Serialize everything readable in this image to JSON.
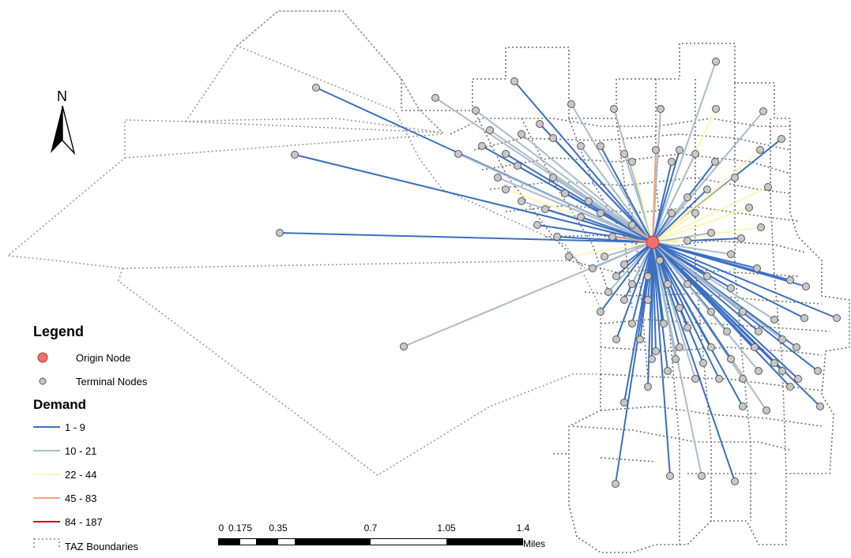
{
  "north_arrow": {
    "label": "N"
  },
  "legend": {
    "title": "Legend",
    "origin_node": {
      "label": "Origin Node",
      "color": "#f07070"
    },
    "terminal_nodes": {
      "label": "Terminal Nodes",
      "color": "#c8c8c8"
    },
    "demand_title": "Demand",
    "demand_classes": [
      {
        "label": "1 - 9",
        "color": "#3a6fc4"
      },
      {
        "label": "10 - 21",
        "color": "#a9bccb"
      },
      {
        "label": "22 - 44",
        "color": "#fcf7b6"
      },
      {
        "label": "45 - 83",
        "color": "#f2a07a"
      },
      {
        "label": "84 - 187",
        "color": "#c1121b"
      }
    ],
    "taz": {
      "label": "TAZ Boundaries"
    }
  },
  "scale_bar": {
    "ticks": [
      "0",
      "0.175",
      "0.35",
      "0.7",
      "1.05",
      "1.4"
    ],
    "units": "Miles"
  }
}
